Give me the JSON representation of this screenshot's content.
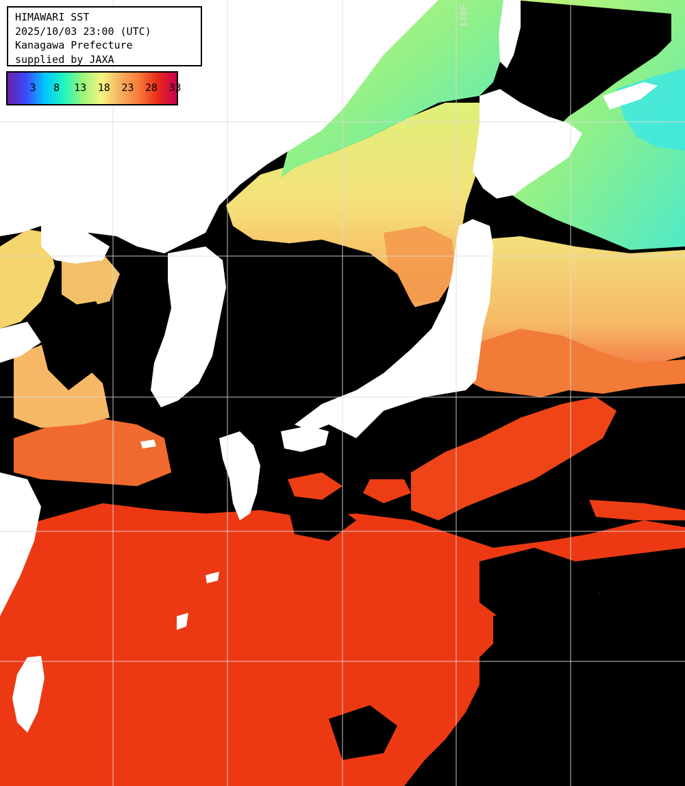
{
  "title_box": {
    "line1": "HIMAWARI SST",
    "line2": "2025/10/03 23:00 (UTC)",
    "line3": "Kanagawa Prefecture",
    "line4": "supplied by JAXA"
  },
  "color_scale": {
    "ticks": [
      "3",
      "8",
      "13",
      "18",
      "23",
      "28",
      "33"
    ],
    "colors": [
      "#6a1fa8",
      "#3a4bff",
      "#00c8ff",
      "#22f5c0",
      "#9cf57a",
      "#f5f582",
      "#f8b060",
      "#f87a3a",
      "#e82a1a",
      "#c80050"
    ]
  },
  "grid": {
    "longitude_label": "140E"
  },
  "colors": {
    "land": "#ffffff",
    "cloud": "#000000",
    "warm_sea": "#ee3a12",
    "mid_sea": "#f7a14a",
    "cool_sea": "#8ef08a",
    "cold_sea": "#3ee8e0",
    "grid_line": "#dcdcdc"
  }
}
